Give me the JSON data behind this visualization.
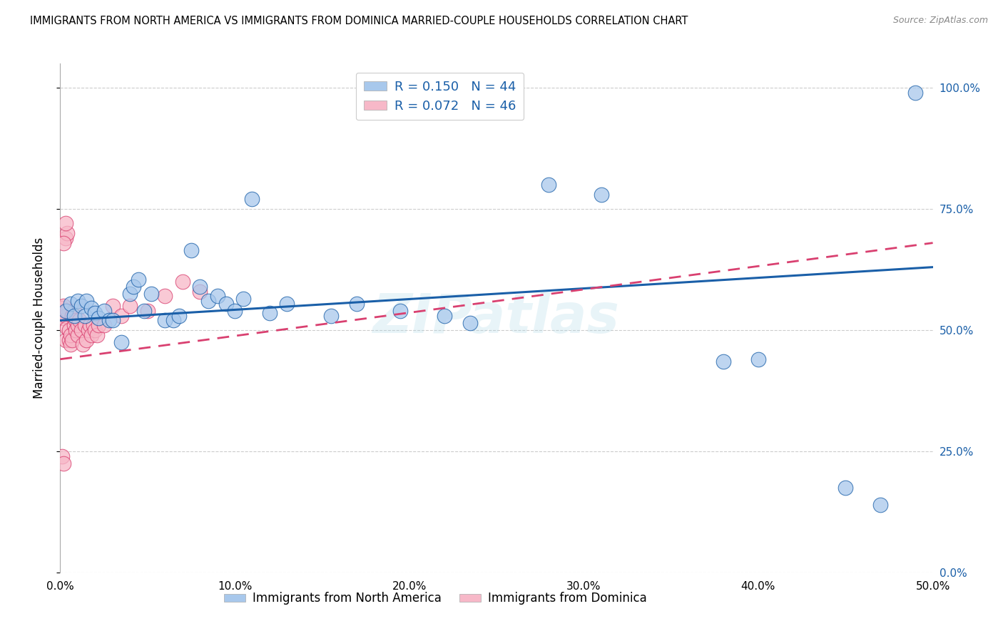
{
  "title": "IMMIGRANTS FROM NORTH AMERICA VS IMMIGRANTS FROM DOMINICA MARRIED-COUPLE HOUSEHOLDS CORRELATION CHART",
  "source": "Source: ZipAtlas.com",
  "ylabel": "Married-couple Households",
  "legend_label_blue": "Immigrants from North America",
  "legend_label_pink": "Immigrants from Dominica",
  "R_blue": 0.15,
  "N_blue": 44,
  "R_pink": 0.072,
  "N_pink": 46,
  "xlim": [
    0.0,
    0.5
  ],
  "ylim": [
    0.0,
    1.05
  ],
  "xticks": [
    0.0,
    0.1,
    0.2,
    0.3,
    0.4,
    0.5
  ],
  "yticks": [
    0.0,
    0.25,
    0.5,
    0.75,
    1.0
  ],
  "ytick_labels_right": [
    "0.0%",
    "25.0%",
    "50.0%",
    "75.0%",
    "100.0%"
  ],
  "xtick_labels": [
    "0.0%",
    "10.0%",
    "20.0%",
    "30.0%",
    "40.0%",
    "50.0%"
  ],
  "color_blue": "#A8C8EC",
  "color_pink": "#F7B8C8",
  "trendline_blue": "#1A5FA8",
  "trendline_pink": "#D94070",
  "watermark": "ZIPatlas",
  "blue_trendline_x0": 0.0,
  "blue_trendline_y0": 0.52,
  "blue_trendline_x1": 0.5,
  "blue_trendline_y1": 0.63,
  "pink_trendline_x0": 0.0,
  "pink_trendline_y0": 0.44,
  "pink_trendline_x1": 0.5,
  "pink_trendline_y1": 0.68,
  "blue_points_x": [
    0.003,
    0.006,
    0.008,
    0.01,
    0.012,
    0.014,
    0.015,
    0.018,
    0.02,
    0.022,
    0.025,
    0.028,
    0.03,
    0.035,
    0.04,
    0.042,
    0.045,
    0.048,
    0.052,
    0.06,
    0.065,
    0.068,
    0.075,
    0.08,
    0.085,
    0.09,
    0.095,
    0.1,
    0.105,
    0.11,
    0.12,
    0.13,
    0.155,
    0.17,
    0.195,
    0.22,
    0.235,
    0.28,
    0.31,
    0.38,
    0.4,
    0.45,
    0.47,
    0.49
  ],
  "blue_points_y": [
    0.54,
    0.555,
    0.53,
    0.56,
    0.55,
    0.53,
    0.56,
    0.545,
    0.535,
    0.525,
    0.54,
    0.52,
    0.52,
    0.475,
    0.575,
    0.59,
    0.605,
    0.54,
    0.575,
    0.52,
    0.52,
    0.53,
    0.665,
    0.59,
    0.56,
    0.57,
    0.555,
    0.54,
    0.565,
    0.77,
    0.535,
    0.555,
    0.53,
    0.555,
    0.54,
    0.53,
    0.515,
    0.8,
    0.78,
    0.435,
    0.44,
    0.175,
    0.14,
    0.99
  ],
  "pink_points_x": [
    0.001,
    0.001,
    0.002,
    0.002,
    0.003,
    0.003,
    0.004,
    0.004,
    0.005,
    0.005,
    0.006,
    0.006,
    0.007,
    0.007,
    0.008,
    0.008,
    0.009,
    0.009,
    0.01,
    0.01,
    0.011,
    0.012,
    0.013,
    0.014,
    0.015,
    0.016,
    0.017,
    0.018,
    0.019,
    0.02,
    0.021,
    0.022,
    0.025,
    0.03,
    0.035,
    0.04,
    0.05,
    0.06,
    0.07,
    0.08,
    0.003,
    0.004,
    0.002,
    0.003,
    0.001,
    0.002
  ],
  "pink_points_y": [
    0.53,
    0.545,
    0.525,
    0.55,
    0.48,
    0.53,
    0.54,
    0.505,
    0.5,
    0.48,
    0.47,
    0.49,
    0.53,
    0.48,
    0.51,
    0.54,
    0.52,
    0.5,
    0.49,
    0.51,
    0.52,
    0.5,
    0.47,
    0.51,
    0.48,
    0.5,
    0.51,
    0.49,
    0.51,
    0.5,
    0.49,
    0.51,
    0.51,
    0.55,
    0.53,
    0.55,
    0.54,
    0.57,
    0.6,
    0.58,
    0.69,
    0.7,
    0.68,
    0.72,
    0.24,
    0.225
  ]
}
